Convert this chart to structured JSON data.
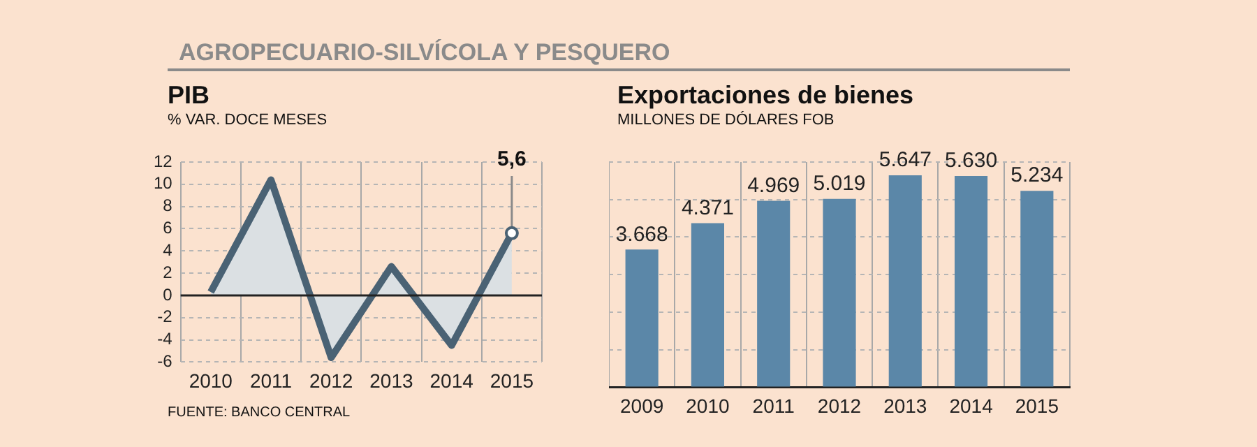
{
  "chart_data": [
    {
      "type": "area",
      "title": "AGROPECUARIO-SILVÍCOLA Y PESQUERO",
      "subtitle": "PIB",
      "ylabel": "% VAR. DOCE MESES",
      "categories": [
        "2010",
        "2011",
        "2012",
        "2013",
        "2014",
        "2015"
      ],
      "series": [
        {
          "color": "#4a6274",
          "values": [
            0.3,
            10.4,
            -5.6,
            2.6,
            -4.5,
            5.6
          ]
        }
      ],
      "ylim": [
        -6,
        12
      ],
      "yticks": [
        -6,
        -4,
        -2,
        0,
        2,
        4,
        6,
        8,
        10,
        12
      ],
      "grid": true,
      "ref_lines": [
        {
          "axis": "y",
          "value": 0,
          "color": "#222222"
        }
      ],
      "annotations": [
        {
          "text": "5,6",
          "x": "2015",
          "y": 5.6
        },
        "FUENTE: BANCO CENTRAL"
      ]
    },
    {
      "type": "bar",
      "title": "Exportaciones de bienes",
      "ylabel": "MILLONES DE DÓLARES FOB",
      "categories": [
        "2009",
        "2010",
        "2011",
        "2012",
        "2013",
        "2014",
        "2015"
      ],
      "values": [
        3668,
        4371,
        4969,
        5019,
        5647,
        5630,
        5234
      ],
      "color": "#5b87a8",
      "value_labels": [
        "3.668",
        "4.371",
        "4.969",
        "5.019",
        "5.647",
        "5.630",
        "5.234"
      ],
      "ylim": [
        0,
        6000
      ],
      "yticks": [
        {
          "value": 0,
          "label": null
        },
        {
          "value": 1000,
          "label": null
        },
        {
          "value": 2000,
          "label": null
        },
        {
          "value": 3000,
          "label": null
        },
        {
          "value": 4000,
          "label": null
        },
        {
          "value": 5000,
          "label": null
        },
        {
          "value": 6000,
          "label": null
        }
      ],
      "grid": true,
      "tick_labels": "x"
    }
  ]
}
